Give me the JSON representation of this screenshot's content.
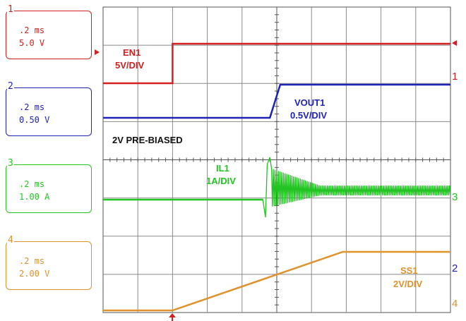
{
  "channels": [
    {
      "num": "1",
      "time": ".2 ms",
      "scale": "5.0 V",
      "color": "#d42020"
    },
    {
      "num": "2",
      "time": ".2 ms",
      "scale": "0.50 V",
      "color": "#1f22b8"
    },
    {
      "num": "3",
      "time": ".2 ms",
      "scale": "1.00 A",
      "color": "#22c422"
    },
    {
      "num": "4",
      "time": ".2 ms",
      "scale": "2.00 V",
      "color": "#e0922c"
    }
  ],
  "annotations": {
    "en1_name": "EN1",
    "en1_scale": "5V/DIV",
    "vout1_name": "VOUT1",
    "vout1_scale": "0.5V/DIV",
    "prebiased": "2V PRE-BIASED",
    "il1_name": "IL1",
    "il1_scale": "1A/DIV",
    "ss1_name": "SS1",
    "ss1_scale": "2V/DIV"
  },
  "chart_data": {
    "type": "line",
    "x_unit": "ms",
    "x_per_div": 0.2,
    "x_range_ms": [
      0,
      2.0
    ],
    "x_divisions": 10,
    "y_divisions": 8,
    "grid": true,
    "series": [
      {
        "name": "EN1",
        "unit": "V",
        "color": "#d42020",
        "x": [
          0,
          0.4,
          0.4,
          2.0
        ],
        "y": [
          0,
          0,
          5.0,
          5.0
        ]
      },
      {
        "name": "VOUT1",
        "unit": "V",
        "color": "#1f22b8",
        "x": [
          0,
          0.96,
          1.02,
          2.0
        ],
        "y": [
          2.0,
          2.0,
          3.3,
          3.3
        ]
      },
      {
        "name": "IL1",
        "unit": "A",
        "color": "#22c422",
        "x": [
          0,
          0.92,
          0.96,
          1.0,
          1.06,
          1.2,
          2.0
        ],
        "y": [
          0,
          0,
          3.0,
          2.2,
          1.0,
          0.9,
          0.9
        ]
      },
      {
        "name": "SS1",
        "unit": "V",
        "color": "#e0922c",
        "x": [
          0,
          0.4,
          1.38,
          2.0
        ],
        "y": [
          0,
          0,
          5.5,
          5.5
        ]
      }
    ]
  }
}
